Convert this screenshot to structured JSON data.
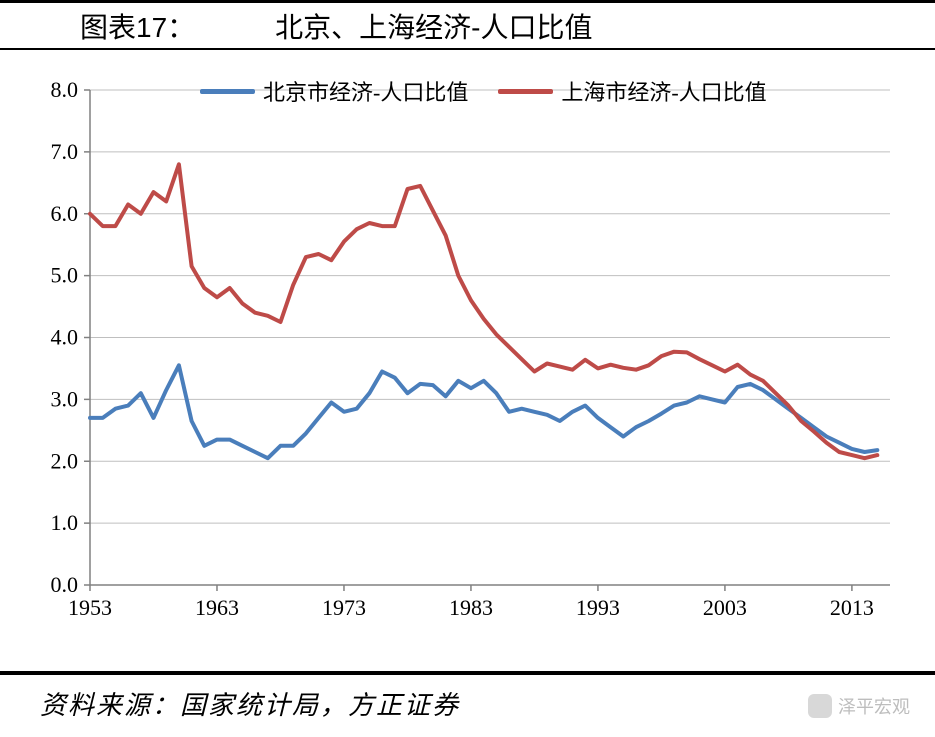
{
  "title_prefix": "图表17：",
  "title_main": "北京、上海经济-人口比值",
  "legend": {
    "series1": "北京市经济-人口比值",
    "series2": "上海市经济-人口比值"
  },
  "source": "资料来源：国家统计局，方正证券",
  "watermark": "泽平宏观",
  "chart": {
    "type": "line",
    "xlim": [
      1953,
      2016
    ],
    "ylim": [
      0.0,
      8.0
    ],
    "xticks": [
      1953,
      1963,
      1973,
      1983,
      1993,
      2003,
      2013
    ],
    "yticks": [
      0.0,
      1.0,
      2.0,
      3.0,
      4.0,
      5.0,
      6.0,
      7.0,
      8.0
    ],
    "grid_color": "#bfbfbf",
    "axis_color": "#808080",
    "tick_font_size": 22,
    "line_width": 4,
    "background_color": "#ffffff",
    "series": [
      {
        "name": "beijing",
        "color": "#4a7ebb",
        "years": [
          1953,
          1954,
          1955,
          1956,
          1957,
          1958,
          1959,
          1960,
          1961,
          1962,
          1963,
          1964,
          1965,
          1966,
          1967,
          1968,
          1969,
          1970,
          1971,
          1972,
          1973,
          1974,
          1975,
          1976,
          1977,
          1978,
          1979,
          1980,
          1981,
          1982,
          1983,
          1984,
          1985,
          1986,
          1987,
          1988,
          1989,
          1990,
          1991,
          1992,
          1993,
          1994,
          1995,
          1996,
          1997,
          1998,
          1999,
          2000,
          2001,
          2002,
          2003,
          2004,
          2005,
          2006,
          2007,
          2008,
          2009,
          2010,
          2011,
          2012,
          2013,
          2014,
          2015
        ],
        "values": [
          2.7,
          2.7,
          2.85,
          2.9,
          3.1,
          2.7,
          3.15,
          3.55,
          2.65,
          2.25,
          2.35,
          2.35,
          2.25,
          2.15,
          2.05,
          2.25,
          2.25,
          2.45,
          2.7,
          2.95,
          2.8,
          2.85,
          3.1,
          3.45,
          3.35,
          3.1,
          3.25,
          3.23,
          3.05,
          3.3,
          3.18,
          3.3,
          3.1,
          2.8,
          2.85,
          2.8,
          2.75,
          2.65,
          2.8,
          2.9,
          2.7,
          2.55,
          2.4,
          2.55,
          2.65,
          2.77,
          2.9,
          2.95,
          3.05,
          3.0,
          2.95,
          3.2,
          3.25,
          3.15,
          3.0,
          2.85,
          2.7,
          2.55,
          2.4,
          2.3,
          2.2,
          2.15,
          2.18
        ]
      },
      {
        "name": "shanghai",
        "color": "#be4b48",
        "years": [
          1953,
          1954,
          1955,
          1956,
          1957,
          1958,
          1959,
          1960,
          1961,
          1962,
          1963,
          1964,
          1965,
          1966,
          1967,
          1968,
          1969,
          1970,
          1971,
          1972,
          1973,
          1974,
          1975,
          1976,
          1977,
          1978,
          1979,
          1980,
          1981,
          1982,
          1983,
          1984,
          1985,
          1986,
          1987,
          1988,
          1989,
          1990,
          1991,
          1992,
          1993,
          1994,
          1995,
          1996,
          1997,
          1998,
          1999,
          2000,
          2001,
          2002,
          2003,
          2004,
          2005,
          2006,
          2007,
          2008,
          2009,
          2010,
          2011,
          2012,
          2013,
          2014,
          2015
        ],
        "values": [
          6.0,
          5.8,
          5.8,
          6.15,
          6.0,
          6.35,
          6.2,
          6.8,
          5.15,
          4.8,
          4.65,
          4.8,
          4.55,
          4.4,
          4.35,
          4.25,
          4.85,
          5.3,
          5.35,
          5.25,
          5.55,
          5.75,
          5.85,
          5.8,
          5.8,
          6.4,
          6.45,
          6.05,
          5.65,
          5.0,
          4.6,
          4.3,
          4.05,
          3.85,
          3.65,
          3.45,
          3.58,
          3.53,
          3.48,
          3.64,
          3.5,
          3.56,
          3.51,
          3.48,
          3.55,
          3.7,
          3.77,
          3.76,
          3.65,
          3.55,
          3.45,
          3.56,
          3.4,
          3.3,
          3.1,
          2.9,
          2.65,
          2.48,
          2.3,
          2.15,
          2.1,
          2.05,
          2.1
        ]
      }
    ]
  }
}
